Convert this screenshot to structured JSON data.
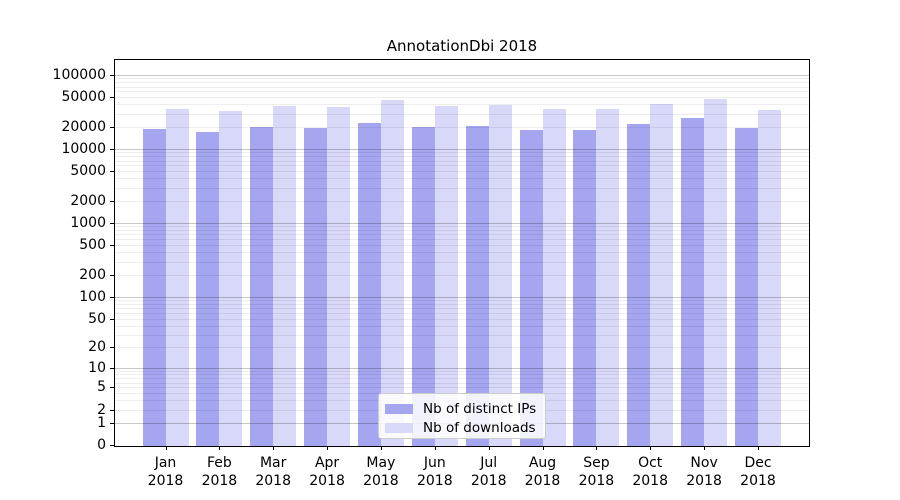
{
  "chart_data": {
    "type": "bar",
    "title": "AnnotationDbi 2018",
    "categories": [
      "Jan 2018",
      "Feb 2018",
      "Mar 2018",
      "Apr 2018",
      "May 2018",
      "Jun 2018",
      "Jul 2018",
      "Aug 2018",
      "Sep 2018",
      "Oct 2018",
      "Nov 2018",
      "Dec 2018"
    ],
    "series": [
      {
        "name": "Nb of distinct IPs",
        "color": "#a5a5f0",
        "values": [
          18400,
          17100,
          19800,
          19500,
          22400,
          19600,
          20800,
          18200,
          18000,
          21500,
          25900,
          19500
        ]
      },
      {
        "name": "Nb of downloads",
        "color": "#d8d8f8",
        "values": [
          35000,
          32700,
          37700,
          37300,
          46000,
          37700,
          39700,
          34800,
          35100,
          40100,
          48000,
          33300
        ]
      }
    ],
    "y_axis": {
      "scale": "log1p",
      "ticks": [
        0,
        1,
        2,
        5,
        10,
        20,
        50,
        100,
        200,
        500,
        1000,
        2000,
        5000,
        10000,
        20000,
        50000,
        100000
      ],
      "tick_labels": [
        "0",
        "1",
        "2",
        "5",
        "10",
        "20",
        "50",
        "100",
        "200",
        "500",
        "1000",
        "2000",
        "5000",
        "10000",
        "20000",
        "50000",
        "100000"
      ],
      "ylim": [
        0,
        130000
      ]
    },
    "x_axis": {
      "label_lines": 2
    },
    "grid": {
      "horizontal": true,
      "minor": true
    },
    "legend": {
      "position": "lower center",
      "entries": [
        "Nb of distinct IPs",
        "Nb of downloads"
      ]
    }
  }
}
